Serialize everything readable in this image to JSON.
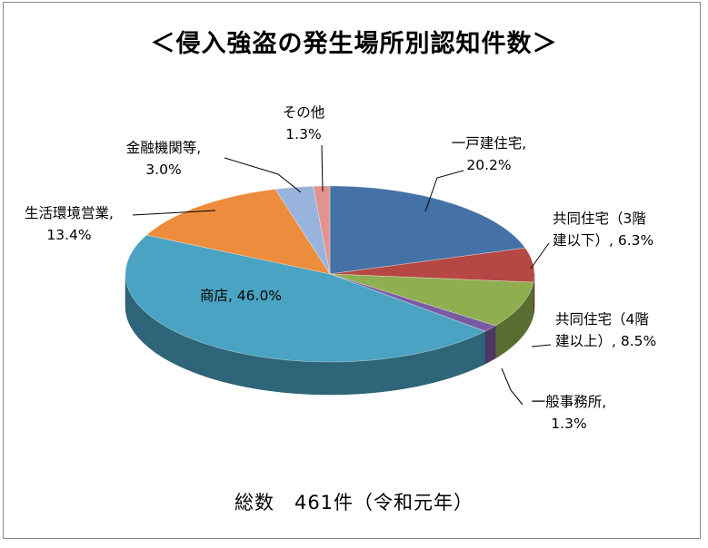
{
  "chart_data": {
    "type": "pie",
    "title": "＜侵入強盗の発生場所別認知件数＞",
    "subtitle": "総数　461件（令和元年）",
    "slices": [
      {
        "label": "一戸建住宅",
        "value": 20.2,
        "value_label": "20.2%",
        "color": "#4472a6"
      },
      {
        "label": "共同住宅（3階建以下）",
        "label_lines": [
          "共同住宅（3階",
          "建以下）,"
        ],
        "value": 6.3,
        "value_label": "6.3%",
        "color": "#b54744"
      },
      {
        "label": "共同住宅（4階建以上）",
        "label_lines": [
          "共同住宅（4階",
          "建以上）,"
        ],
        "value": 8.5,
        "value_label": "8.5%",
        "color": "#8fae4f"
      },
      {
        "label": "一般事務所",
        "value": 1.3,
        "value_label": "1.3%",
        "color": "#7a5ba3"
      },
      {
        "label": "商店",
        "value": 46.0,
        "value_label": "46.0%",
        "color": "#4aa3c2"
      },
      {
        "label": "生活環境営業",
        "value": 13.4,
        "value_label": "13.4%",
        "color": "#ec8c3c"
      },
      {
        "label": "金融機関等",
        "value": 3.0,
        "value_label": "3.0%",
        "color": "#98b4dc"
      },
      {
        "label": "その他",
        "value": 1.3,
        "value_label": "1.3%",
        "color": "#e2938f"
      }
    ],
    "legend": "none"
  }
}
